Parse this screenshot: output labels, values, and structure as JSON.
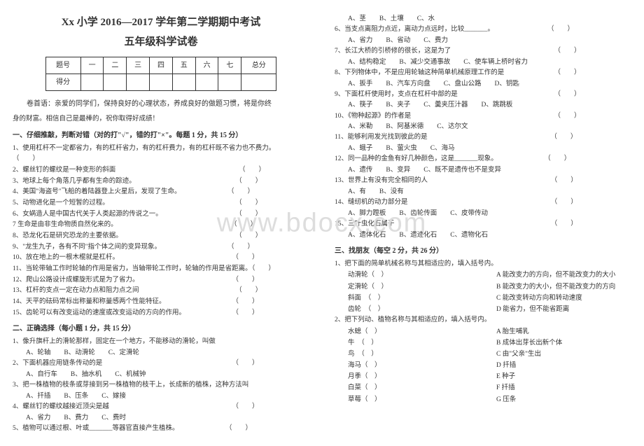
{
  "title_main": "Xx 小学 2016—2017 学年第二学期期中考试",
  "title_sub": "五年级科学试卷",
  "score_table": {
    "header": [
      "题号",
      "一",
      "二",
      "三",
      "四",
      "五",
      "六",
      "七",
      "总分"
    ],
    "row2_label": "得分"
  },
  "intro1": "卷首语：亲爱的同学们，保持良好的心理状态，养成良好的做题习惯，将是你终",
  "intro2": "身的财富。相信自己是最棒的，祝你取得好成绩！",
  "section1_title": "一、仔细推敲，判断对错（对的打\"√\"，错的打\"×\"。每题 1 分，共 15 分）",
  "s1": {
    "q1": "1、使用杠杆不一定都省力，有的杠杆省力，有的杠杆费力，有的杠杆既不省力也不费力。（　　）",
    "q2": "2、螺丝钉的螺纹是一种变形的斜面　　　　　　　　　　　　　　　　　　　（　　）",
    "q3": "3、地球上每个角落几乎都有生命的踪迹。　　　　　　　　　　　　　　　　（　　）",
    "q4": "4、美国\"海盗号\"飞船的着陆器登上火星后，发现了生命。　　　　　　　　（　　）",
    "q5": "5、动物进化是一个短暂的过程。　　　　　　　　　　　　　　　　　　　　（　　）",
    "q6": "6、女娲造人是中国古代关于人类起源的传说之一。　　　　　　　　　　　　（　　）",
    "q7": "7 生命是由非生命物质自然化来的。　　　　　　　　　　　　　　　　　　（　　）",
    "q8": "8、恐龙化石是研究恐龙的主要依据。　　　　　　　　　　　　　　　　　　（　　）",
    "q9": "9、\"龙生九子，各有不同\"指个体之间的变异现象。　　　　　　　　　　　（　　）",
    "q10": "10、放在地上的一根木棍就是杠杆。　　　　　　　　　　　　　　　　　　（　　）",
    "q11": "11、当轮带轴工作时轮轴的作用是省力，当轴带轮工作时，轮轴的作用是省距离。（　　）",
    "q12": "12、爬山公路设计成螺旋形式是为了省力。　　　　　　　　　　　　　　　（　　）",
    "q13": "13、杠杆的支点一定在动力点和阻力点之间　　　　　　　　　　　　　　　（　　）",
    "q14": "14、天平的砝码常标出称量和称量感两个性能特征。　　　　　　　　　　　（　　）",
    "q15": "15、齿轮可以有改变运动的速度或改变运动的方向的作用。　　　　　　　　（　　）"
  },
  "section2_title": "二、正确选择（每小题 1 分，共 15 分）",
  "s2": {
    "q1": "1、像升旗杆上的滑轮那样，固定在一个地方，不能移动的滑轮，叫做",
    "q1o": "A、轮轴　　B、动滑轮　　C、定滑轮",
    "q2": "2、下面机器应用链条传动的是　　　　　　　　　　　　　　　　　　　　（　　）",
    "q2o": "A、自行车　　B、抽水机　　C、机械钟",
    "q3": "3、把一株植物的枝条或芽接到另一株植物的枝干上，长成新的植株，这种方法叫",
    "q3o": "A、扦插　　B、压条　　C、嫁接",
    "q4": "4、螺丝钉的螺纹越接近顶尖是越　　　　　　　　　　　　　　　　　　　（　　）",
    "q4o": "A、省力　　B、费力　　C、费时",
    "q5": "5、植物可以通过根、叶或_______等器官直接产生植株。　　　　　　　　（　　）",
    "q5o": "A、茎　　B、土壤　　C、水",
    "q6": "6、当支点离阻力点近，离动力点远时，比较_______。　　　　　　　　　（　　）",
    "q6o": "A、省力　　B、省动　　C、费力",
    "q7": "7、长江大桥的引桥修的很长，这是为了　　　　　　　　　　　　　　　　（　　）",
    "q7o": "A、结构稳定　　B、减少交通事故　　C、使车辆上桥时省力",
    "q8": "8、下列物体中，不是应用轮轴这种简单机械原理工作的是　　　　　　　　（　　）",
    "q8o": "A、扳手　　B、汽车方向盘　　C、盘山公路　　D、钥匙",
    "q9": "9、下面杠杆使用时，支点在杠杆中部的是　　　　　　　　　　　　　　　（　　）",
    "q9o": "A、筷子　　B、夹子　　C、羹夹压汁器　　D、跳跳板",
    "q10": "10、《物种起源》的作者是　　　　　　　　　　　　　　　　　　　　　　（　　）",
    "q10o": "A、米勒　　B、阿基米德　　C、达尔文",
    "q11": "11、能够利用发光找到彼此的是　　　　　　　　　　　　　　　　　　　（　　）",
    "q11o": "A、蛾子　　B、萤火虫　　C、海马",
    "q12": "12、同一品种的金鱼有好几种颜色，这是_______现象。　　　　　　　　（　　）",
    "q12o": "A、遗传　　B、变异　　C、既不是遗传也不是变异",
    "q13": "13、世界上有没有完全相同的人　　　　　　　　　　　　　　　　　　　（　　）",
    "q13o": "A、有　　B、没有",
    "q14": "14、缝纫机的动力部分是　　　　　　　　　　　　　　　　　　　　　　（　　）",
    "q14o": "A、脚力蹬板　　B、齿轮传面　　C、皮带传动",
    "q15": "15、三叶虫化石属于　　　　　　　　　　　　　　　　　　　　　　　　（　　）",
    "q15o": "A、遗体化石　　B、遗迹化石　　C、遗物化石"
  },
  "section3_title": "三、找朋友（每空 2 分，共 26 分）",
  "s3": {
    "intro1": "1、把下面的简单机械名称与其相适应的，填入括号内。",
    "m1a": "动滑轮（　）",
    "m1b": "A 能改变力的方向，但不能改变力的大小",
    "m2a": "定滑轮（　）",
    "m2b": "B 能改变力的大小，但不能改变力的方向",
    "m3a": "斜面　（　）",
    "m3b": "C 能改变转动方向和转动速度",
    "m4a": "齿轮　（　）",
    "m4b": "D 能省力，但不能省距离",
    "intro2": "2、把下列动、植物名称与其相适应的，填入括号内。",
    "n1a": "水螅（　）",
    "n1b": "A 胎生哺乳",
    "n2a": "牛　（　）",
    "n2b": "B 成体出芽长出新个体",
    "n3a": "鸟　（　）",
    "n3b": "C 由\"父亲\"生出",
    "n4a": "海马（　）",
    "n4b": "D 扦插",
    "n5a": "月季（　）",
    "n5b": "E 种子",
    "n6a": "白菜（　）",
    "n6b": "F 扦插",
    "n7a": "草莓（　）",
    "n7b": "G 压条"
  },
  "watermark": "www.bdocx.com"
}
